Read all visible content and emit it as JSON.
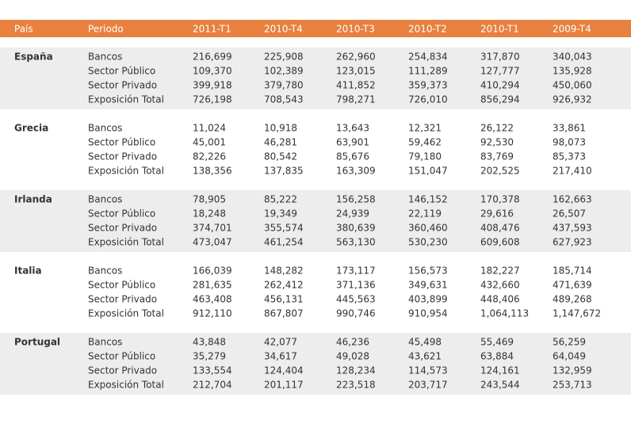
{
  "table": {
    "header": [
      "País",
      "Periodo",
      "2011-T1",
      "2010-T4",
      "2010-T3",
      "2010-T2",
      "2010-T1",
      "2009-T4"
    ],
    "groups": [
      {
        "country": "España",
        "rows": [
          {
            "label": "Bancos",
            "values": [
              "216,699",
              "225,908",
              "262,960",
              "254,834",
              "317,870",
              "340,043"
            ]
          },
          {
            "label": "Sector Público",
            "values": [
              "109,370",
              "102,389",
              "123,015",
              "111,289",
              "127,777",
              "135,928"
            ]
          },
          {
            "label": "Sector Privado",
            "values": [
              "399,918",
              "379,780",
              "411,852",
              "359,373",
              "410,294",
              "450,060"
            ]
          },
          {
            "label": "Exposición Total",
            "values": [
              "726,198",
              "708,543",
              "798,271",
              "726,010",
              "856,294",
              "926,932"
            ]
          }
        ]
      },
      {
        "country": "Grecia",
        "rows": [
          {
            "label": "Bancos",
            "values": [
              "11,024",
              "10,918",
              "13,643",
              "12,321",
              "26,122",
              "33,861"
            ]
          },
          {
            "label": "Sector Público",
            "values": [
              "45,001",
              "46,281",
              "63,901",
              "59,462",
              "92,530",
              "98,073"
            ]
          },
          {
            "label": "Sector Privado",
            "values": [
              "82,226",
              "80,542",
              "85,676",
              "79,180",
              "83,769",
              "85,373"
            ]
          },
          {
            "label": "Exposición Total",
            "values": [
              "138,356",
              "137,835",
              "163,309",
              "151,047",
              "202,525",
              "217,410"
            ]
          }
        ]
      },
      {
        "country": "Irlanda",
        "rows": [
          {
            "label": "Bancos",
            "values": [
              "78,905",
              "85,222",
              "156,258",
              "146,152",
              "170,378",
              "162,663"
            ]
          },
          {
            "label": "Sector Público",
            "values": [
              "18,248",
              "19,349",
              "24,939",
              "22,119",
              "29,616",
              "26,507"
            ]
          },
          {
            "label": "Sector Privado",
            "values": [
              "374,701",
              "355,574",
              "380,639",
              "360,460",
              "408,476",
              "437,593"
            ]
          },
          {
            "label": "Exposición Total",
            "values": [
              "473,047",
              "461,254",
              "563,130",
              "530,230",
              "609,608",
              "627,923"
            ]
          }
        ]
      },
      {
        "country": "Italia",
        "rows": [
          {
            "label": "Bancos",
            "values": [
              "166,039",
              "148,282",
              "173,117",
              "156,573",
              "182,227",
              "185,714"
            ]
          },
          {
            "label": "Sector Público",
            "values": [
              "281,635",
              "262,412",
              "371,136",
              "349,631",
              "432,660",
              "471,639"
            ]
          },
          {
            "label": "Sector Privado",
            "values": [
              "463,408",
              "456,131",
              "445,563",
              "403,899",
              "448,406",
              "489,268"
            ]
          },
          {
            "label": "Exposición Total",
            "values": [
              "912,110",
              "867,807",
              "990,746",
              "910,954",
              "1,064,113",
              "1,147,672"
            ]
          }
        ]
      },
      {
        "country": "Portugal",
        "rows": [
          {
            "label": "Bancos",
            "values": [
              "43,848",
              "42,077",
              "46,236",
              "45,498",
              "55,469",
              "56,259"
            ]
          },
          {
            "label": "Sector Público",
            "values": [
              "35,279",
              "34,617",
              "49,028",
              "43,621",
              "63,884",
              "64,049"
            ]
          },
          {
            "label": "Sector Privado",
            "values": [
              "133,554",
              "124,404",
              "128,234",
              "114,573",
              "124,161",
              "132,959"
            ]
          },
          {
            "label": "Exposición Total",
            "values": [
              "212,704",
              "201,117",
              "223,518",
              "203,717",
              "243,544",
              "253,713"
            ]
          }
        ]
      }
    ]
  }
}
